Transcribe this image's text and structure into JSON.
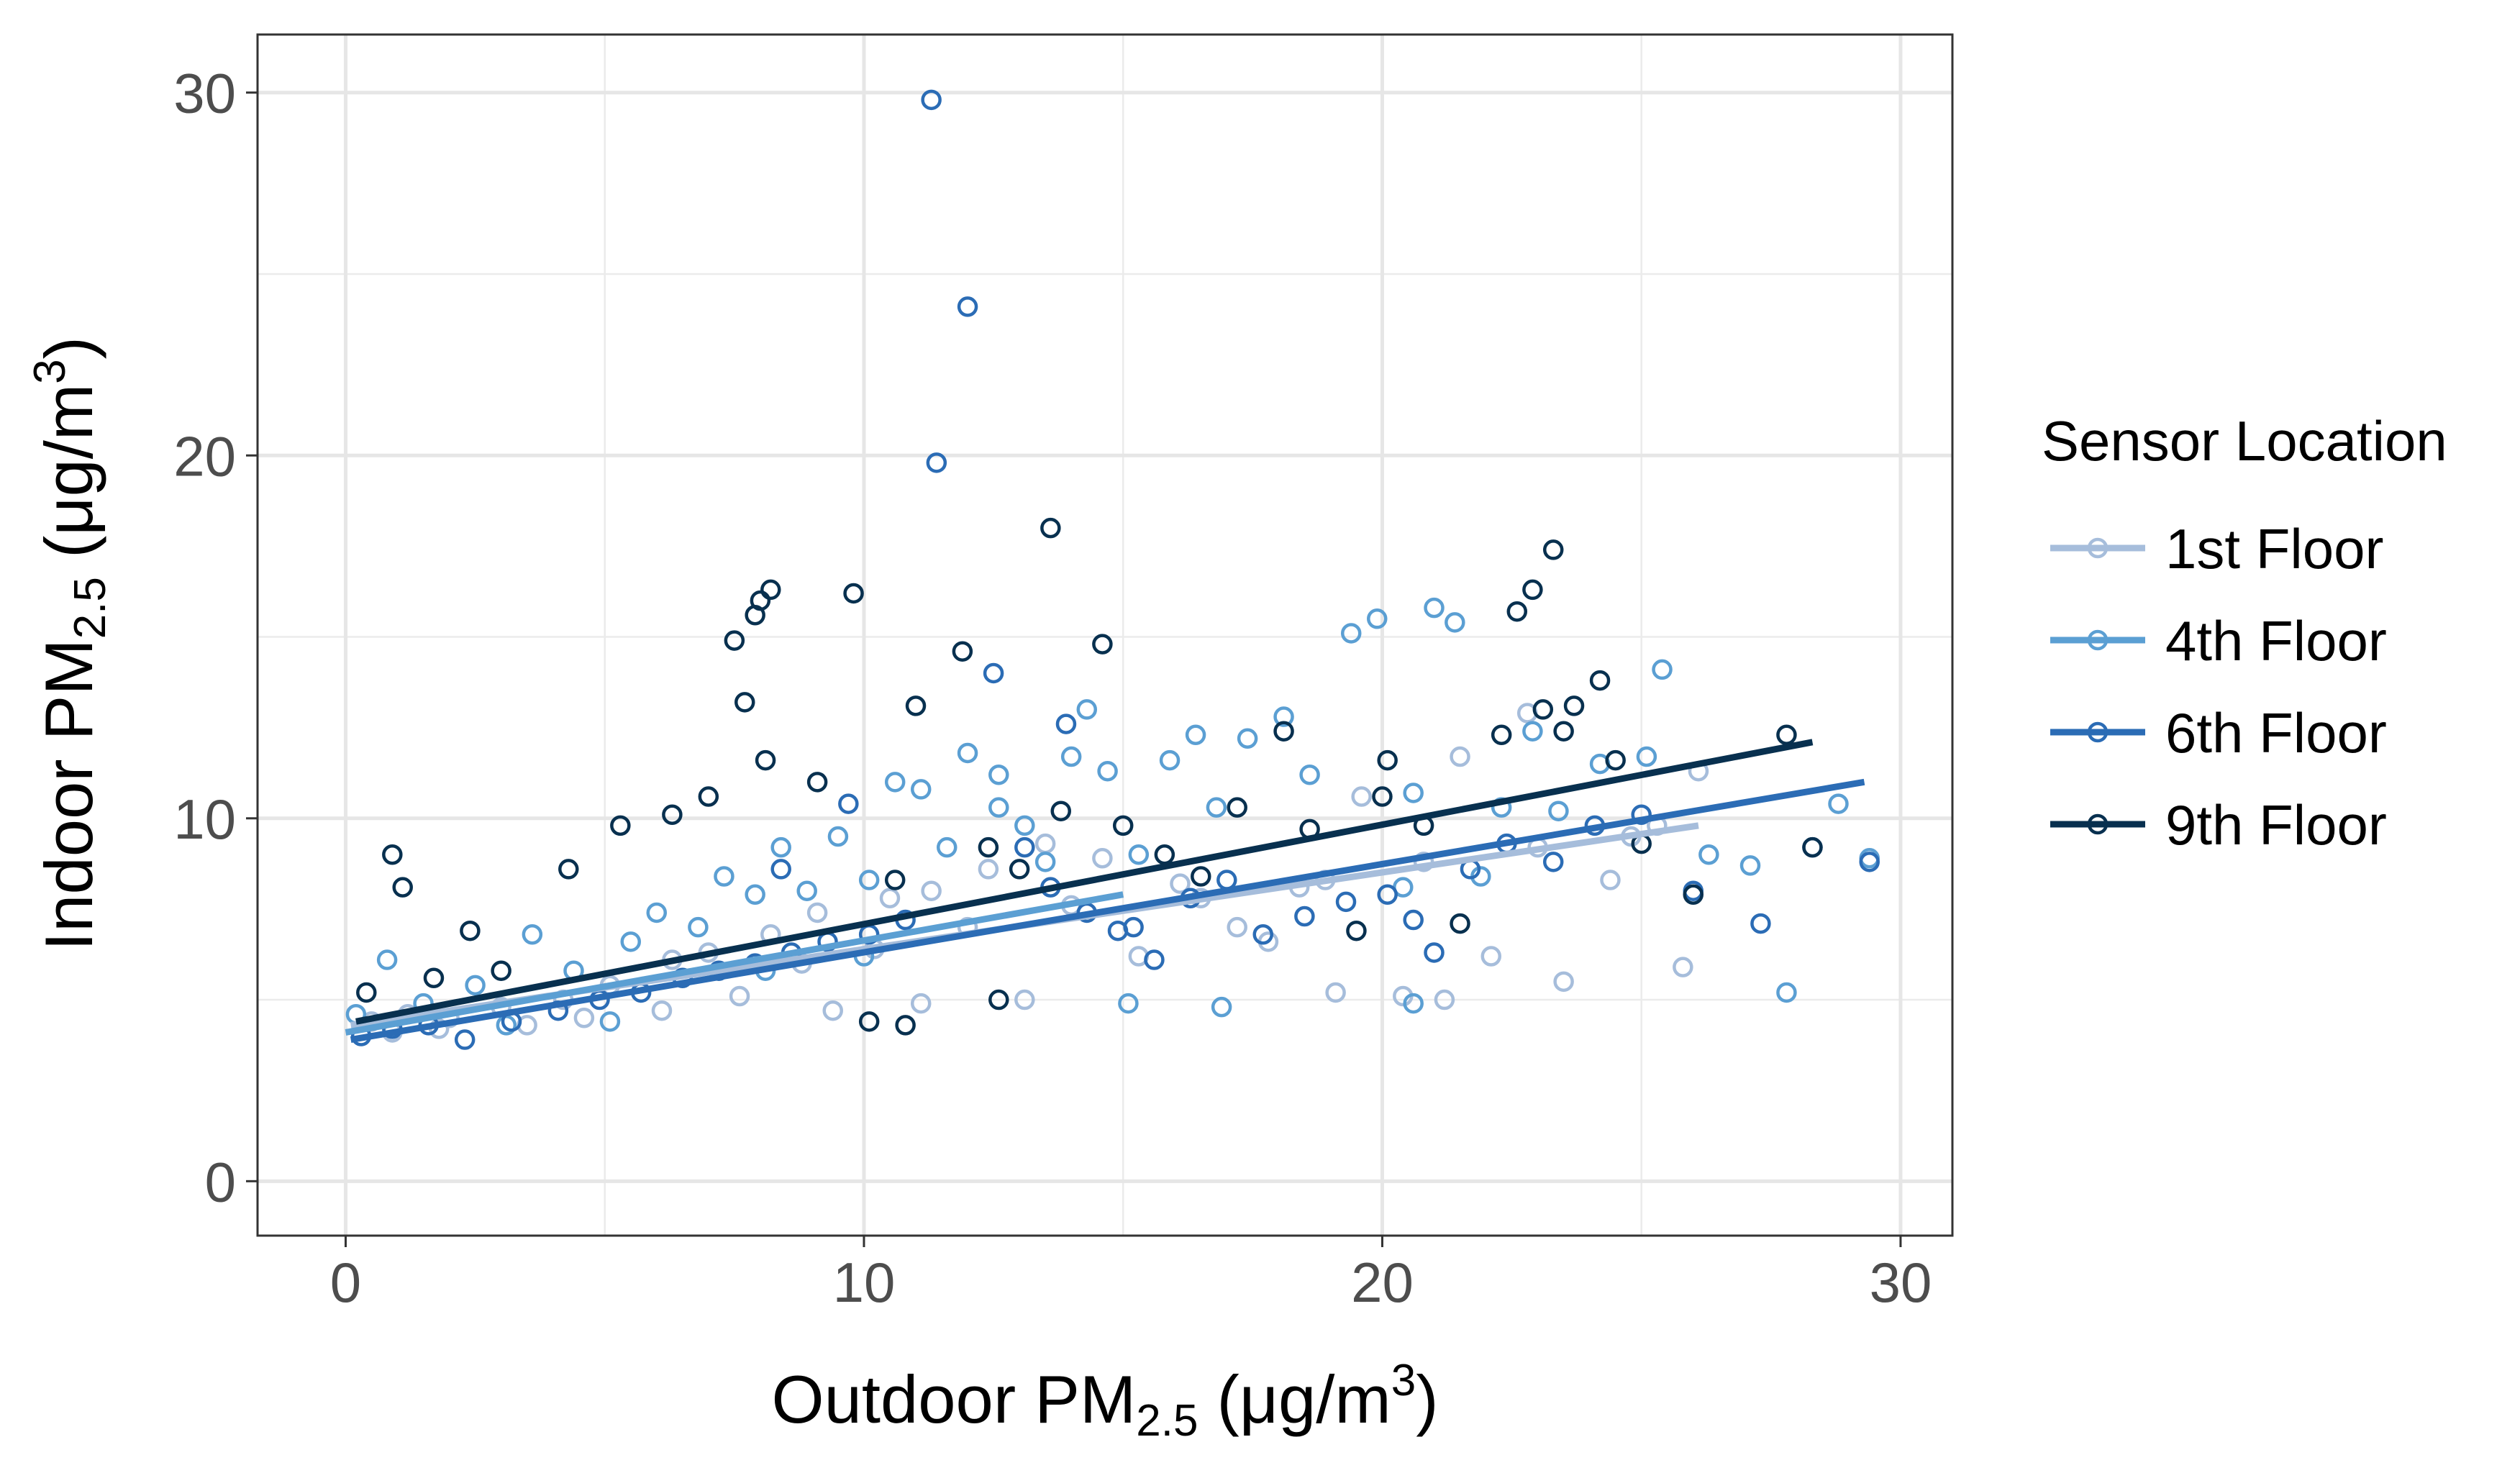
{
  "chart_data": {
    "type": "scatter",
    "xlabel": {
      "main": "Outdoor PM",
      "sub": "2.5",
      "units": " (μg/m",
      "sup": "3",
      "close": ")"
    },
    "ylabel": {
      "main": "Indoor PM",
      "sub": "2.5",
      "units": " (μg/m",
      "sup": "3",
      "close": ")"
    },
    "xlim": [
      -1.7,
      31.0
    ],
    "ylim": [
      -1.5,
      31.6
    ],
    "x_ticks": [
      0,
      10,
      20,
      30
    ],
    "x_tick_labels": [
      "0",
      "10",
      "20",
      "30"
    ],
    "y_ticks": [
      0,
      10,
      20,
      30
    ],
    "y_tick_labels": [
      "0",
      "10",
      "20",
      "30"
    ],
    "grid": true,
    "legend": {
      "title": "Sensor Location",
      "placement": "right"
    },
    "series": [
      {
        "name": "1st Floor",
        "color": "#a6bddb",
        "fit": {
          "x": [
            0.1,
            26.1
          ],
          "y": [
            4.3,
            9.8
          ]
        },
        "points": [
          [
            0.5,
            4.4
          ],
          [
            1.2,
            4.6
          ],
          [
            2.0,
            4.5
          ],
          [
            3.0,
            4.8
          ],
          [
            4.2,
            5.0
          ],
          [
            5.1,
            5.4
          ],
          [
            6.3,
            6.1
          ],
          [
            7.0,
            6.3
          ],
          [
            8.2,
            6.8
          ],
          [
            9.1,
            7.4
          ],
          [
            10.5,
            7.8
          ],
          [
            11.3,
            8.0
          ],
          [
            12.4,
            8.6
          ],
          [
            13.5,
            9.3
          ],
          [
            14.6,
            8.9
          ],
          [
            16.1,
            8.2
          ],
          [
            17.2,
            7.0
          ],
          [
            18.4,
            8.1
          ],
          [
            19.1,
            5.2
          ],
          [
            20.4,
            5.1
          ],
          [
            21.2,
            5.0
          ],
          [
            22.1,
            6.2
          ],
          [
            23.5,
            5.5
          ],
          [
            24.4,
            8.3
          ],
          [
            25.3,
            9.8
          ],
          [
            25.8,
            5.9
          ],
          [
            26.1,
            11.3
          ],
          [
            22.8,
            12.9
          ],
          [
            21.5,
            11.7
          ],
          [
            19.6,
            10.6
          ],
          [
            17.8,
            6.6
          ],
          [
            15.3,
            6.2
          ],
          [
            13.1,
            5.0
          ],
          [
            11.1,
            4.9
          ],
          [
            9.4,
            4.7
          ],
          [
            7.6,
            5.1
          ],
          [
            6.1,
            4.7
          ],
          [
            4.6,
            4.5
          ],
          [
            3.5,
            4.3
          ],
          [
            1.8,
            4.2
          ],
          [
            0.9,
            4.1
          ],
          [
            8.8,
            6.0
          ],
          [
            10.2,
            6.4
          ],
          [
            12.0,
            7.0
          ],
          [
            14.0,
            7.6
          ],
          [
            16.5,
            7.8
          ],
          [
            18.9,
            8.3
          ],
          [
            20.8,
            8.8
          ],
          [
            23.0,
            9.2
          ],
          [
            24.8,
            9.5
          ]
        ]
      },
      {
        "name": "4th Floor",
        "color": "#5b9fd3",
        "fit": {
          "x": [
            0.0,
            15.0
          ],
          "y": [
            4.1,
            7.9
          ]
        },
        "points": [
          [
            0.2,
            4.6
          ],
          [
            0.8,
            6.1
          ],
          [
            1.5,
            4.9
          ],
          [
            2.5,
            5.4
          ],
          [
            3.6,
            6.8
          ],
          [
            4.4,
            5.8
          ],
          [
            5.5,
            6.6
          ],
          [
            6.0,
            7.4
          ],
          [
            6.8,
            7.0
          ],
          [
            7.3,
            8.4
          ],
          [
            7.9,
            7.9
          ],
          [
            8.4,
            9.2
          ],
          [
            8.9,
            8.0
          ],
          [
            9.5,
            9.5
          ],
          [
            10.1,
            8.3
          ],
          [
            10.6,
            11.0
          ],
          [
            11.1,
            10.8
          ],
          [
            11.6,
            9.2
          ],
          [
            12.0,
            11.8
          ],
          [
            12.6,
            10.3
          ],
          [
            13.1,
            9.8
          ],
          [
            13.5,
            8.8
          ],
          [
            14.0,
            11.7
          ],
          [
            14.3,
            13.0
          ],
          [
            14.7,
            11.3
          ],
          [
            15.3,
            9.0
          ],
          [
            15.9,
            11.6
          ],
          [
            16.4,
            12.3
          ],
          [
            16.8,
            10.3
          ],
          [
            17.4,
            12.2
          ],
          [
            18.1,
            12.8
          ],
          [
            18.6,
            11.2
          ],
          [
            19.4,
            15.1
          ],
          [
            19.9,
            15.5
          ],
          [
            20.4,
            8.1
          ],
          [
            20.6,
            10.7
          ],
          [
            21.0,
            15.8
          ],
          [
            21.4,
            15.4
          ],
          [
            21.9,
            8.4
          ],
          [
            22.3,
            10.3
          ],
          [
            22.9,
            12.4
          ],
          [
            23.4,
            10.2
          ],
          [
            24.2,
            11.5
          ],
          [
            25.4,
            14.1
          ],
          [
            25.1,
            11.7
          ],
          [
            26.3,
            9.0
          ],
          [
            27.1,
            8.7
          ],
          [
            27.8,
            5.2
          ],
          [
            28.8,
            10.4
          ],
          [
            29.4,
            8.9
          ],
          [
            12.6,
            11.2
          ],
          [
            15.1,
            4.9
          ],
          [
            16.9,
            4.8
          ],
          [
            20.6,
            4.9
          ],
          [
            10.0,
            6.2
          ],
          [
            8.1,
            5.8
          ],
          [
            5.1,
            4.4
          ],
          [
            3.1,
            4.3
          ]
        ]
      },
      {
        "name": "6th Floor",
        "color": "#2b6cb5",
        "fit": {
          "x": [
            0.1,
            29.3
          ],
          "y": [
            3.9,
            11.0
          ]
        },
        "points": [
          [
            0.3,
            4.0
          ],
          [
            0.9,
            4.2
          ],
          [
            1.6,
            4.3
          ],
          [
            2.3,
            3.9
          ],
          [
            3.2,
            4.4
          ],
          [
            4.1,
            4.7
          ],
          [
            4.9,
            5.0
          ],
          [
            5.7,
            5.2
          ],
          [
            6.5,
            5.6
          ],
          [
            7.2,
            5.8
          ],
          [
            7.9,
            6.0
          ],
          [
            8.6,
            6.3
          ],
          [
            9.3,
            6.6
          ],
          [
            10.1,
            6.8
          ],
          [
            10.8,
            7.2
          ],
          [
            11.4,
            19.8
          ],
          [
            12.0,
            24.1
          ],
          [
            12.5,
            14.0
          ],
          [
            13.1,
            9.2
          ],
          [
            13.6,
            8.1
          ],
          [
            14.3,
            7.4
          ],
          [
            14.9,
            6.9
          ],
          [
            15.6,
            6.1
          ],
          [
            16.3,
            7.8
          ],
          [
            17.0,
            8.3
          ],
          [
            17.7,
            6.8
          ],
          [
            18.5,
            7.3
          ],
          [
            19.3,
            7.7
          ],
          [
            20.1,
            7.9
          ],
          [
            20.6,
            7.2
          ],
          [
            21.0,
            6.3
          ],
          [
            21.7,
            8.6
          ],
          [
            22.4,
            9.3
          ],
          [
            23.3,
            8.8
          ],
          [
            24.1,
            9.8
          ],
          [
            25.0,
            10.1
          ],
          [
            26.0,
            8.0
          ],
          [
            27.3,
            7.1
          ],
          [
            28.3,
            9.2
          ],
          [
            29.4,
            8.8
          ],
          [
            11.3,
            29.8
          ],
          [
            9.7,
            10.4
          ],
          [
            13.9,
            12.6
          ],
          [
            15.2,
            7.0
          ],
          [
            8.4,
            8.6
          ]
        ]
      },
      {
        "name": "9th Floor",
        "color": "#08304f",
        "fit": {
          "x": [
            0.2,
            28.3
          ],
          "y": [
            4.4,
            12.1
          ]
        },
        "points": [
          [
            0.4,
            5.2
          ],
          [
            0.9,
            9.0
          ],
          [
            1.1,
            8.1
          ],
          [
            1.7,
            5.6
          ],
          [
            2.4,
            6.9
          ],
          [
            3.0,
            5.8
          ],
          [
            4.3,
            8.6
          ],
          [
            5.3,
            9.8
          ],
          [
            6.3,
            10.1
          ],
          [
            7.0,
            10.6
          ],
          [
            7.5,
            14.9
          ],
          [
            7.7,
            13.2
          ],
          [
            7.9,
            15.6
          ],
          [
            8.0,
            16.0
          ],
          [
            8.2,
            16.3
          ],
          [
            8.1,
            11.6
          ],
          [
            9.1,
            11.0
          ],
          [
            9.8,
            16.2
          ],
          [
            10.6,
            8.3
          ],
          [
            11.0,
            13.1
          ],
          [
            11.9,
            14.6
          ],
          [
            12.4,
            9.2
          ],
          [
            13.0,
            8.6
          ],
          [
            13.6,
            18.0
          ],
          [
            13.8,
            10.2
          ],
          [
            14.6,
            14.8
          ],
          [
            15.0,
            9.8
          ],
          [
            15.8,
            9.0
          ],
          [
            16.5,
            8.4
          ],
          [
            17.2,
            10.3
          ],
          [
            18.1,
            12.4
          ],
          [
            18.6,
            9.7
          ],
          [
            19.5,
            6.9
          ],
          [
            20.0,
            10.6
          ],
          [
            20.1,
            11.6
          ],
          [
            20.8,
            9.8
          ],
          [
            21.5,
            7.1
          ],
          [
            22.3,
            12.3
          ],
          [
            22.6,
            15.7
          ],
          [
            22.9,
            16.3
          ],
          [
            23.1,
            13.0
          ],
          [
            23.3,
            17.4
          ],
          [
            23.5,
            12.4
          ],
          [
            23.7,
            13.1
          ],
          [
            24.2,
            13.8
          ],
          [
            24.5,
            11.6
          ],
          [
            25.0,
            9.3
          ],
          [
            26.0,
            7.9
          ],
          [
            27.8,
            12.3
          ],
          [
            28.3,
            9.2
          ],
          [
            10.8,
            4.3
          ],
          [
            10.1,
            4.4
          ],
          [
            12.6,
            5.0
          ]
        ]
      }
    ]
  }
}
